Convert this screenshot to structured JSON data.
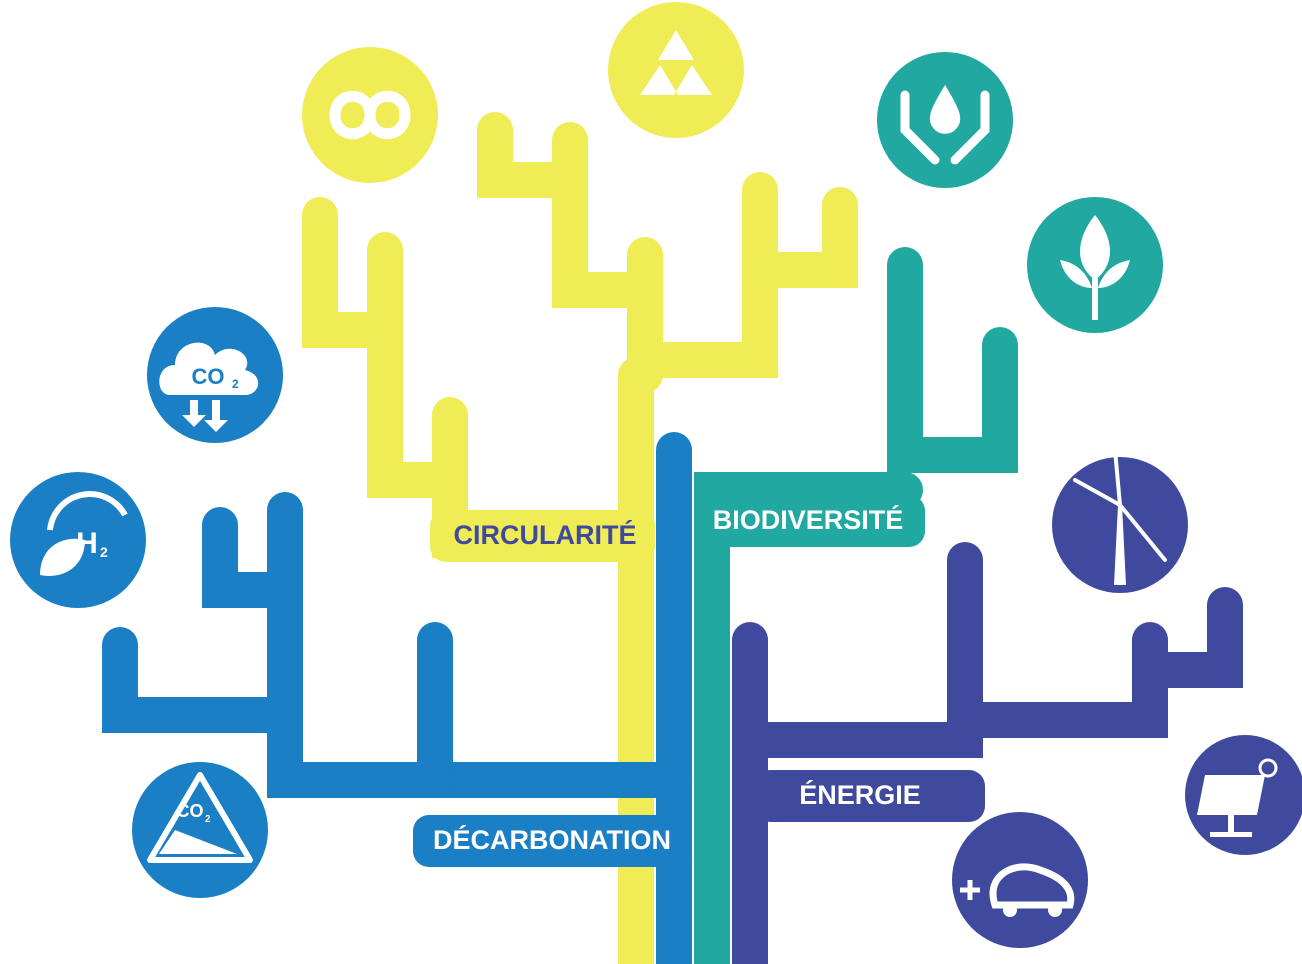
{
  "labels": {
    "circularity": "CIRCULARITÉ",
    "biodiversity": "BIODIVERSITÉ",
    "decarbonation": "DÉCARBONATION",
    "energy": "ÉNERGIE"
  },
  "icons": {
    "co2_cloud": {
      "main": "CO",
      "sub": "2"
    },
    "h2": {
      "main": "H",
      "sub": "2"
    },
    "co2_sign": {
      "main": "CO",
      "sub": "2"
    }
  }
}
